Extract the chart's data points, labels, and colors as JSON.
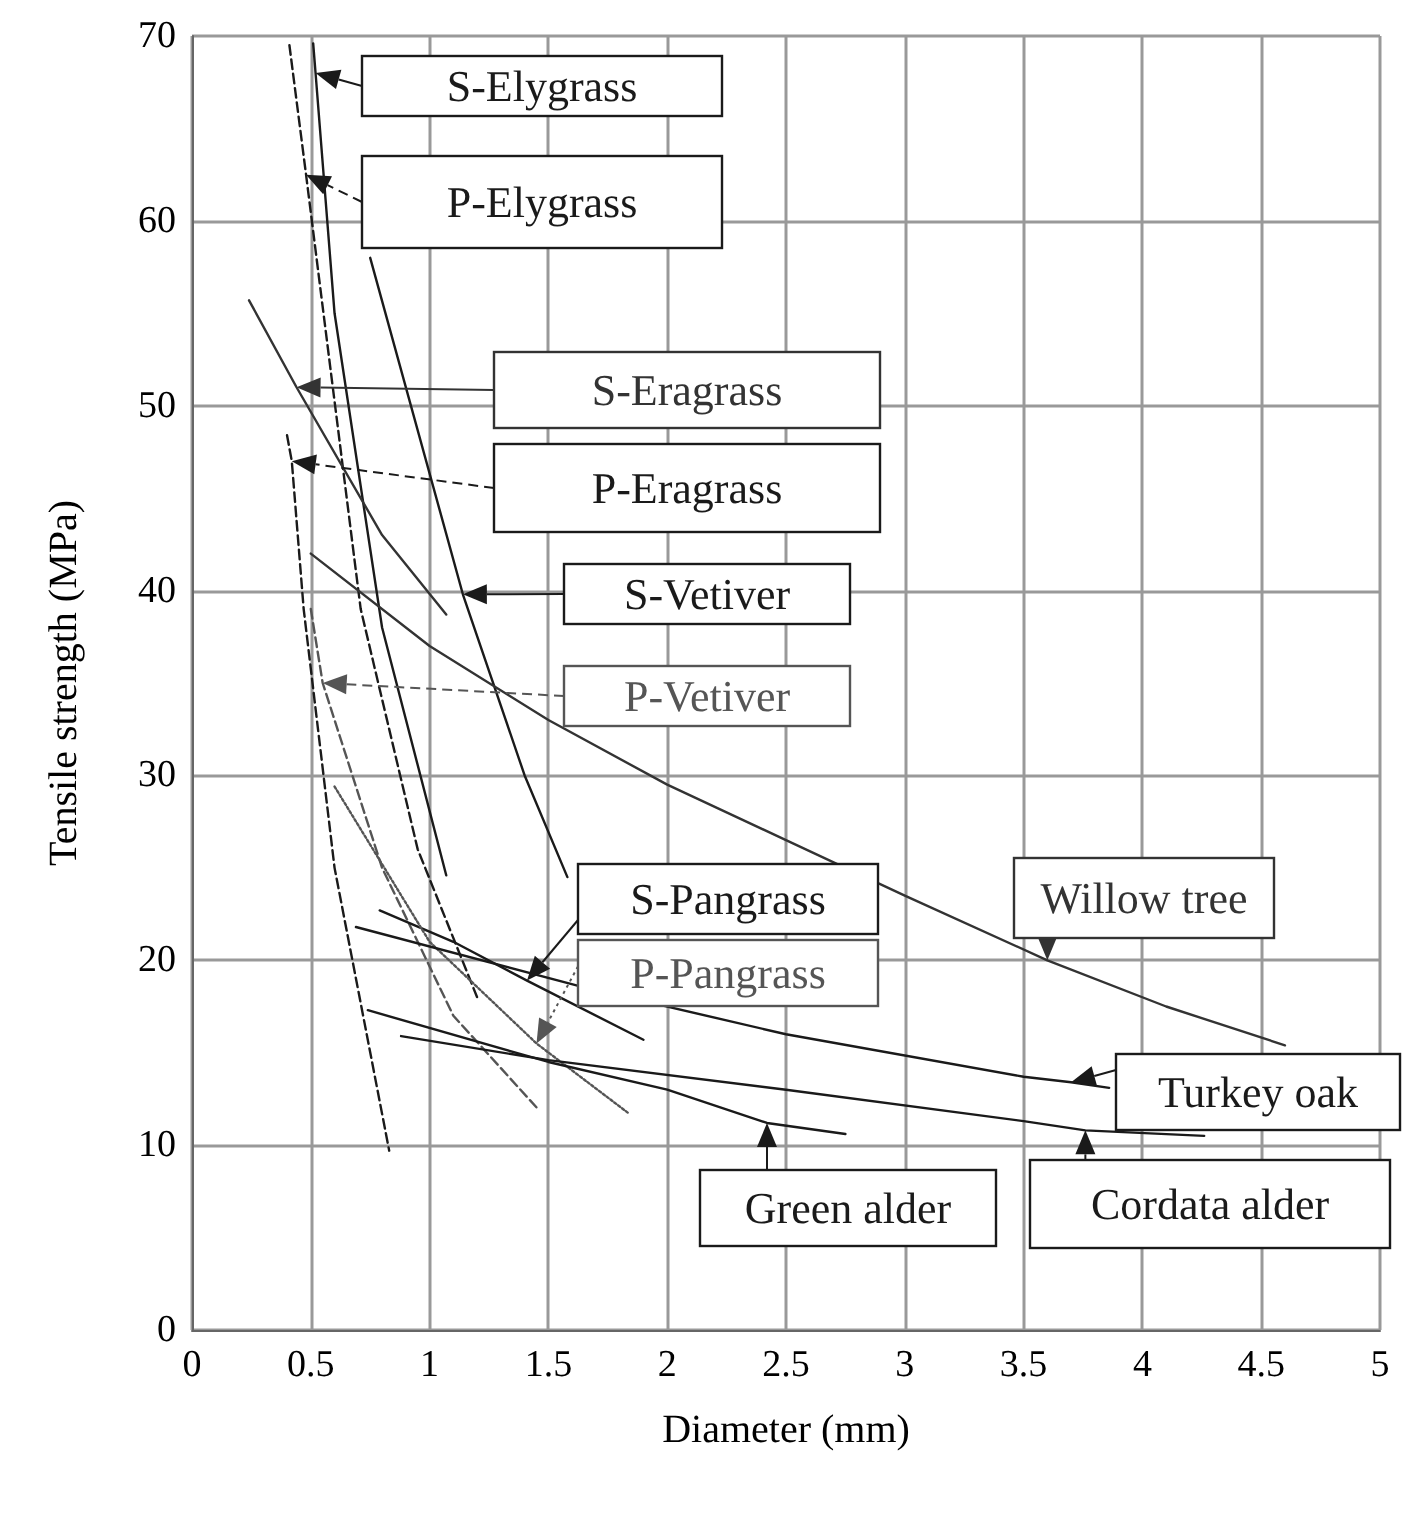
{
  "chart_data": {
    "type": "line",
    "xlabel": "Diameter (mm)",
    "ylabel": "Tensile strength (MPa)",
    "xlim": [
      0,
      5
    ],
    "xticks": [
      0,
      0.5,
      1,
      1.5,
      2,
      2.5,
      3,
      3.5,
      4,
      4.5,
      5
    ],
    "ylim": [
      0,
      70
    ],
    "yticks": [
      0,
      10,
      20,
      30,
      40,
      50,
      60,
      70
    ],
    "grid": true,
    "legend": "right",
    "marker": "none",
    "series": [
      {
        "name": "S-Elygrass",
        "color": "#1a1a1a",
        "line_style": "solid",
        "x": [
          0.51,
          0.52,
          0.6,
          0.8,
          1.07
        ],
        "values": [
          69.6,
          68,
          55,
          38,
          24.6
        ]
      },
      {
        "name": "P-Elygrass",
        "color": "#1a1a1a",
        "line_style": "dashed",
        "x": [
          0.41,
          0.48,
          0.71,
          0.95,
          1.2
        ],
        "values": [
          69.5,
          62.5,
          39,
          26,
          18
        ]
      },
      {
        "name": "S-Eragrass",
        "color": "#333333",
        "line_style": "solid",
        "x": [
          0.24,
          0.44,
          0.8,
          1.07
        ],
        "values": [
          55.7,
          51,
          43,
          38.7
        ]
      },
      {
        "name": "P-Eragrass",
        "color": "#1a1a1a",
        "line_style": "dashed",
        "x": [
          0.4,
          0.42,
          0.47,
          0.6,
          0.83
        ],
        "values": [
          48.4,
          47,
          39,
          25,
          9.7
        ]
      },
      {
        "name": "S-Vetiver",
        "color": "#1a1a1a",
        "line_style": "solid",
        "x": [
          0.75,
          1.14,
          1.4,
          1.58
        ],
        "values": [
          58,
          39.8,
          30,
          24.5
        ]
      },
      {
        "name": "P-Vetiver",
        "color": "#555555",
        "line_style": "dashed",
        "x": [
          0.5,
          0.55,
          0.8,
          1.1,
          1.46
        ],
        "values": [
          39,
          35,
          25,
          17,
          11.9
        ]
      },
      {
        "name": "S-Pangrass",
        "color": "#1a1a1a",
        "line_style": "solid",
        "x": [
          0.79,
          1.1,
          1.41,
          1.9
        ],
        "values": [
          22.7,
          21,
          18.9,
          15.7
        ]
      },
      {
        "name": "P-Pangrass",
        "color": "#555555",
        "line_style": "dotted",
        "x": [
          0.6,
          1.0,
          1.45,
          1.84
        ],
        "values": [
          29.4,
          21,
          15.5,
          11.7
        ]
      },
      {
        "name": "Willow tree",
        "color": "#333333",
        "line_style": "solid",
        "x": [
          0.5,
          1,
          1.5,
          2,
          2.5,
          3,
          3.6,
          4.1,
          4.6
        ],
        "values": [
          42,
          37,
          33,
          29.5,
          26.5,
          23.5,
          20,
          17.5,
          15.4
        ]
      },
      {
        "name": "Turkey oak",
        "color": "#1a1a1a",
        "line_style": "solid",
        "x": [
          0.69,
          1.63,
          2.5,
          3.5,
          3.7,
          3.86
        ],
        "values": [
          21.8,
          18.6,
          16,
          13.7,
          13.4,
          13.1
        ]
      },
      {
        "name": "Cordata alder",
        "color": "#1a1a1a",
        "line_style": "solid",
        "x": [
          0.88,
          1.5,
          2.5,
          3.5,
          3.76,
          4.26
        ],
        "values": [
          15.9,
          14.6,
          13,
          11.3,
          10.8,
          10.5
        ]
      },
      {
        "name": "Green alder",
        "color": "#1a1a1a",
        "line_style": "solid",
        "x": [
          0.74,
          1.5,
          2,
          2.42,
          2.75
        ],
        "values": [
          17.3,
          14.5,
          13,
          11.2,
          10.6
        ]
      }
    ]
  }
}
